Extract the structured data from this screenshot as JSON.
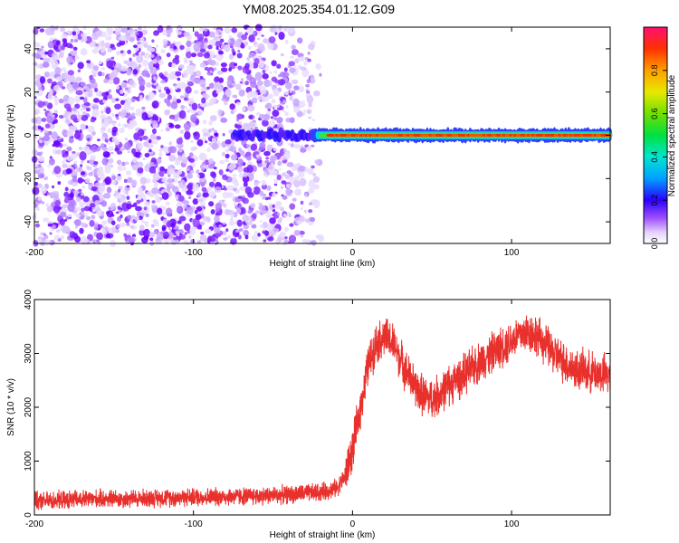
{
  "title": "YM08.2025.354.01.12.G09",
  "chart_data": [
    {
      "type": "heatmap",
      "xlabel": "Height of straight line (km)",
      "ylabel": "Frequency (Hz)",
      "xlim": [
        -200,
        162
      ],
      "ylim": [
        -50,
        50
      ],
      "xticks": [
        -200,
        -100,
        0,
        100
      ],
      "yticks": [
        -40,
        -20,
        0,
        20,
        40
      ],
      "colorbar": {
        "label": "Normalized spectral amplitude",
        "range": [
          0,
          1
        ],
        "ticks": [
          0.0,
          0.2,
          0.4,
          0.6,
          0.8
        ]
      },
      "description": "Scattered noise (purple) for heights below about -20 km; narrow band near 0 Hz with high amplitude (red) from about -20 km to 162 km."
    },
    {
      "type": "line",
      "xlabel": "Height of straight line (km)",
      "ylabel": "SNR (10 * v/v)",
      "xlim": [
        -200,
        162
      ],
      "ylim": [
        0,
        4000
      ],
      "xticks": [
        -200,
        -100,
        0,
        100
      ],
      "yticks": [
        0,
        1000,
        2000,
        3000,
        4000
      ],
      "color": "#e8302c",
      "series": [
        {
          "name": "SNR",
          "x": [
            -200,
            -180,
            -160,
            -140,
            -120,
            -100,
            -80,
            -60,
            -40,
            -20,
            -10,
            -5,
            0,
            5,
            10,
            15,
            20,
            25,
            30,
            35,
            40,
            45,
            50,
            55,
            60,
            70,
            80,
            90,
            100,
            105,
            110,
            115,
            120,
            125,
            130,
            140,
            150,
            162
          ],
          "y": [
            250,
            280,
            300,
            300,
            320,
            330,
            340,
            350,
            380,
            420,
            500,
            700,
            1200,
            2000,
            2800,
            3200,
            3300,
            3200,
            2900,
            2600,
            2350,
            2200,
            2150,
            2250,
            2400,
            2600,
            2850,
            3050,
            3250,
            3350,
            3400,
            3350,
            3200,
            3050,
            2900,
            2700,
            2650,
            2600
          ]
        }
      ]
    }
  ]
}
